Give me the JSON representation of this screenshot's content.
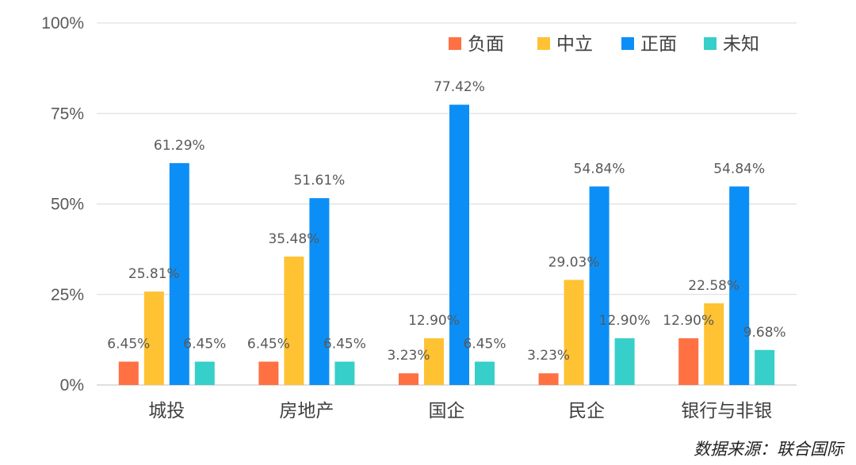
{
  "chart_data": {
    "type": "bar",
    "categories": [
      "城投",
      "房地产",
      "国企",
      "民企",
      "银行与非银"
    ],
    "series": [
      {
        "name": "负面",
        "color": "#FF7043",
        "values": [
          6.45,
          6.45,
          3.23,
          3.23,
          12.9
        ],
        "labels": [
          "6.45%",
          "6.45%",
          "3.23%",
          "3.23%",
          "12.90%"
        ]
      },
      {
        "name": "中立",
        "color": "#FFC232",
        "values": [
          25.81,
          35.48,
          12.9,
          29.03,
          22.58
        ],
        "labels": [
          "25.81%",
          "35.48%",
          "12.90%",
          "29.03%",
          "22.58%"
        ]
      },
      {
        "name": "正面",
        "color": "#0B8FF7",
        "values": [
          61.29,
          51.61,
          77.42,
          54.84,
          54.84
        ],
        "labels": [
          "61.29%",
          "51.61%",
          "77.42%",
          "54.84%",
          "54.84%"
        ]
      },
      {
        "name": "未知",
        "color": "#36CFC9",
        "values": [
          6.45,
          6.45,
          6.45,
          12.9,
          9.68
        ],
        "labels": [
          "6.45%",
          "6.45%",
          "6.45%",
          "12.90%",
          "9.68%"
        ]
      }
    ],
    "y_ticks": [
      "0%",
      "25%",
      "50%",
      "75%",
      "100%"
    ],
    "ylim": [
      0,
      100
    ],
    "grid": true,
    "legend": "top-right"
  },
  "source": "数据来源：联合国际"
}
